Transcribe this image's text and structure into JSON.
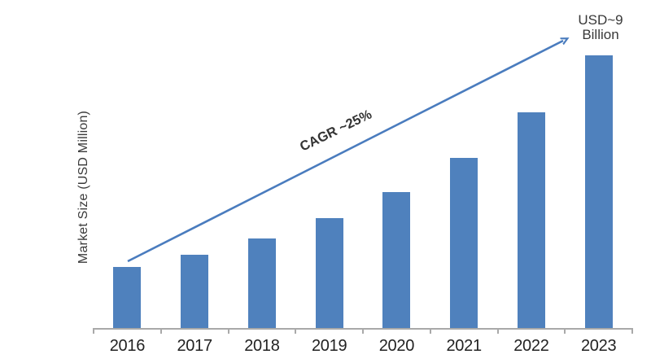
{
  "chart_data": {
    "type": "bar",
    "title": "",
    "categories": [
      "2016",
      "2017",
      "2018",
      "2019",
      "2020",
      "2021",
      "2022",
      "2023"
    ],
    "values": [
      2015,
      2420,
      2955,
      3630,
      4490,
      5615,
      7120,
      9000
    ],
    "values_estimated": true,
    "unit": "USD Million",
    "xlabel": "",
    "ylabel": "Market Size (USD Million)",
    "ylim": [
      0,
      9700
    ],
    "grid": false,
    "legend": null,
    "bar_color": "#4F81BD",
    "annotations": [
      {
        "type": "arrow-text",
        "label": "CAGR ~25%",
        "from_category": "2016",
        "to_category": "2023",
        "color": "#4A7CBE"
      },
      {
        "type": "text",
        "label": "USD~9 Billion",
        "label_lines": [
          "USD~9",
          "Billion"
        ],
        "at_category": "2023",
        "position": "top-right"
      }
    ]
  },
  "colors": {
    "bar": "#4F81BD",
    "arrow": "#4A7CBE",
    "axis": "#A9A9A9",
    "year_text": "#222222",
    "annotation_text": "#333333",
    "background": "#FFFFFF"
  }
}
